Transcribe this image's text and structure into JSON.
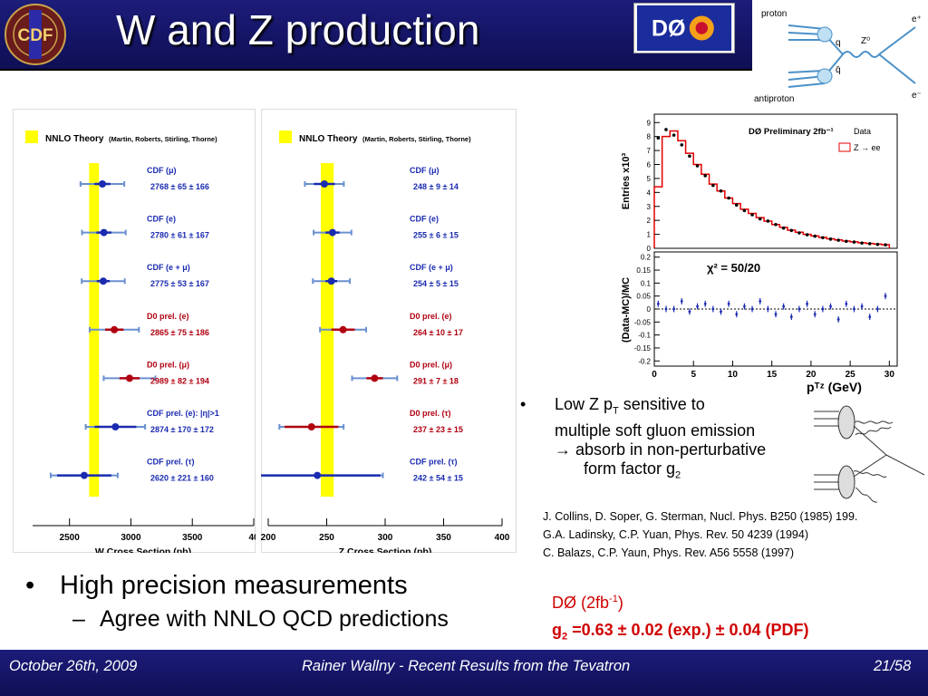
{
  "header": {
    "title": "W and Z production",
    "cdf_logo_text": "CDF",
    "d0_logo_text": "DØ"
  },
  "feynman": {
    "proton": "proton",
    "antiproton": "antiproton",
    "q": "q",
    "qbar": "q̄",
    "z0": "Z⁰",
    "eplus": "e⁺",
    "eminus": "e⁻"
  },
  "w_plot": {
    "legend": "NNLO Theory",
    "legend_sub": "(Martin, Roberts, Stirling, Thorne)",
    "xlabel": "W Cross Section (pb)",
    "ticks": [
      "2500",
      "3000",
      "3500",
      "40"
    ],
    "entries": [
      {
        "label": "CDF (μ)",
        "value": "2768 ±  65 ±  166",
        "color": "#1a2bb0",
        "center": 2768,
        "stat": 65,
        "syst": 166
      },
      {
        "label": "CDF (e)",
        "value": "2780 ±  61 ±  167",
        "color": "#1a2bb0",
        "center": 2780,
        "stat": 61,
        "syst": 167
      },
      {
        "label": "CDF (e + μ)",
        "value": "2775 ±  53 ±  167",
        "color": "#1a2bb0",
        "center": 2775,
        "stat": 53,
        "syst": 167
      },
      {
        "label": "D0 prel. (e)",
        "value": "2865 ±  75 ±  186",
        "color": "#b00010",
        "center": 2865,
        "stat": 75,
        "syst": 186
      },
      {
        "label": "D0 prel. (μ)",
        "value": "2989 ±  82 ±  194",
        "color": "#b00010",
        "center": 2989,
        "stat": 82,
        "syst": 194
      },
      {
        "label": "CDF prel. (e): |η|>1",
        "value": "2874 ± 170 ±  172",
        "color": "#1a2bb0",
        "center": 2874,
        "stat": 170,
        "syst": 172
      },
      {
        "label": "CDF prel. (τ)",
        "value": "2620 ± 221 ±  160",
        "color": "#1a2bb0",
        "center": 2620,
        "stat": 221,
        "syst": 160
      }
    ]
  },
  "z_plot": {
    "legend": "NNLO Theory",
    "legend_sub": "(Martin, Roberts, Stirling, Thorne)",
    "xlabel": "Z Cross Section (pb)",
    "ticks": [
      "200",
      "250",
      "300",
      "350",
      "400"
    ],
    "entries": [
      {
        "label": "CDF (μ)",
        "value": "248 ±   9 ±   14",
        "color": "#1a2bb0",
        "center": 248,
        "stat": 9,
        "syst": 14
      },
      {
        "label": "CDF (e)",
        "value": "255 ±   6 ±   15",
        "color": "#1a2bb0",
        "center": 255,
        "stat": 6,
        "syst": 15
      },
      {
        "label": "CDF (e + μ)",
        "value": "254 ±   5 ±   15",
        "color": "#1a2bb0",
        "center": 254,
        "stat": 5,
        "syst": 15
      },
      {
        "label": "D0 prel. (e)",
        "value": "264 ±  10 ±   17",
        "color": "#b00010",
        "center": 264,
        "stat": 10,
        "syst": 17
      },
      {
        "label": "D0 prel. (μ)",
        "value": "291 ±   7 ±   18",
        "color": "#b00010",
        "center": 291,
        "stat": 7,
        "syst": 18
      },
      {
        "label": "D0 prel. (τ)",
        "value": "237 ±  23 ±   15",
        "color": "#b00010",
        "center": 237,
        "stat": 23,
        "syst": 15
      },
      {
        "label": "CDF prel. (τ)",
        "value": "242 ±  54 ±   15",
        "color": "#1a2bb0",
        "center": 242,
        "stat": 54,
        "syst": 15
      }
    ]
  },
  "pt_plot": {
    "title": "DØ Preliminary 2fb⁻¹",
    "legend_data": "Data",
    "legend_mc": "Z → ee",
    "ylabel_top": "Entries x10³",
    "ylabel_bottom": "(Data-MC)/MC",
    "chi2": "χ² = 50/20",
    "xlabel": "pᵀᶻ (GeV)",
    "yticks_top": [
      "9",
      "8",
      "7",
      "6",
      "5",
      "4",
      "3",
      "2",
      "1",
      "0"
    ],
    "yticks_bottom": [
      "0.2",
      "0.15",
      "0.1",
      "0.05",
      "0",
      "-0.05",
      "-0.1",
      "-0.15",
      "-0.2"
    ],
    "xticks": [
      "0",
      "5",
      "10",
      "15",
      "20",
      "25",
      "30"
    ],
    "mc": [
      4.4,
      8.0,
      8.4,
      7.7,
      6.8,
      6.0,
      5.3,
      4.6,
      4.1,
      3.6,
      3.2,
      2.8,
      2.5,
      2.2,
      1.95,
      1.7,
      1.5,
      1.3,
      1.15,
      1.0,
      0.88,
      0.78,
      0.68,
      0.6,
      0.52,
      0.46,
      0.4,
      0.35,
      0.3,
      0.26
    ],
    "data": [
      7.9,
      8.5,
      8.1,
      7.4,
      6.6,
      5.9,
      5.2,
      4.5,
      4.1,
      3.6,
      3.1,
      2.7,
      2.4,
      2.1,
      1.95,
      1.7,
      1.45,
      1.28,
      1.1,
      0.97,
      0.87,
      0.76,
      0.66,
      0.58,
      0.5,
      0.45,
      0.38,
      0.33,
      0.28,
      0.25
    ],
    "ratio": [
      0.02,
      0.0,
      0.0,
      0.03,
      -0.01,
      0.01,
      0.02,
      0.0,
      -0.01,
      0.02,
      -0.02,
      0.01,
      0.0,
      0.03,
      0.0,
      -0.02,
      0.01,
      -0.03,
      0.0,
      0.02,
      -0.02,
      0.0,
      0.01,
      -0.04,
      0.02,
      0.0,
      0.01,
      -0.03,
      0.0,
      0.05
    ]
  },
  "bullets": {
    "main": "High precision measurements",
    "sub": "Agree with  NNLO QCD predictions"
  },
  "lowz": {
    "line1a": "Low Z p",
    "line1sub": "T",
    "line1b": " sensitive to",
    "line2": "multiple soft gluon emission",
    "line3": "→ absorb in non-perturbative",
    "line4a": "form factor g",
    "line4sub": "2"
  },
  "refs": [
    "J. Collins, D. Soper, G. Sterman, Nucl. Phys.  B250 (1985) 199.",
    "G.A. Ladinsky, C.P. Yuan, Phys. Rev. 50 4239 (1994)",
    "C. Balazs, C.P. Yaun, Phys. Rev. A56 5558 (1997)"
  ],
  "d0_result": {
    "line1a": "DØ (2fb",
    "line1sup": "-1",
    "line1b": ")",
    "line2a": "g",
    "line2sub": "2",
    "line2b": " =0.63 ± 0.02 (exp.) ± 0.04 (PDF)"
  },
  "footer": {
    "date": "October 26th, 2009",
    "talk": "Rainer Wallny - Recent Results from the Tevatron",
    "page": "21/58"
  }
}
